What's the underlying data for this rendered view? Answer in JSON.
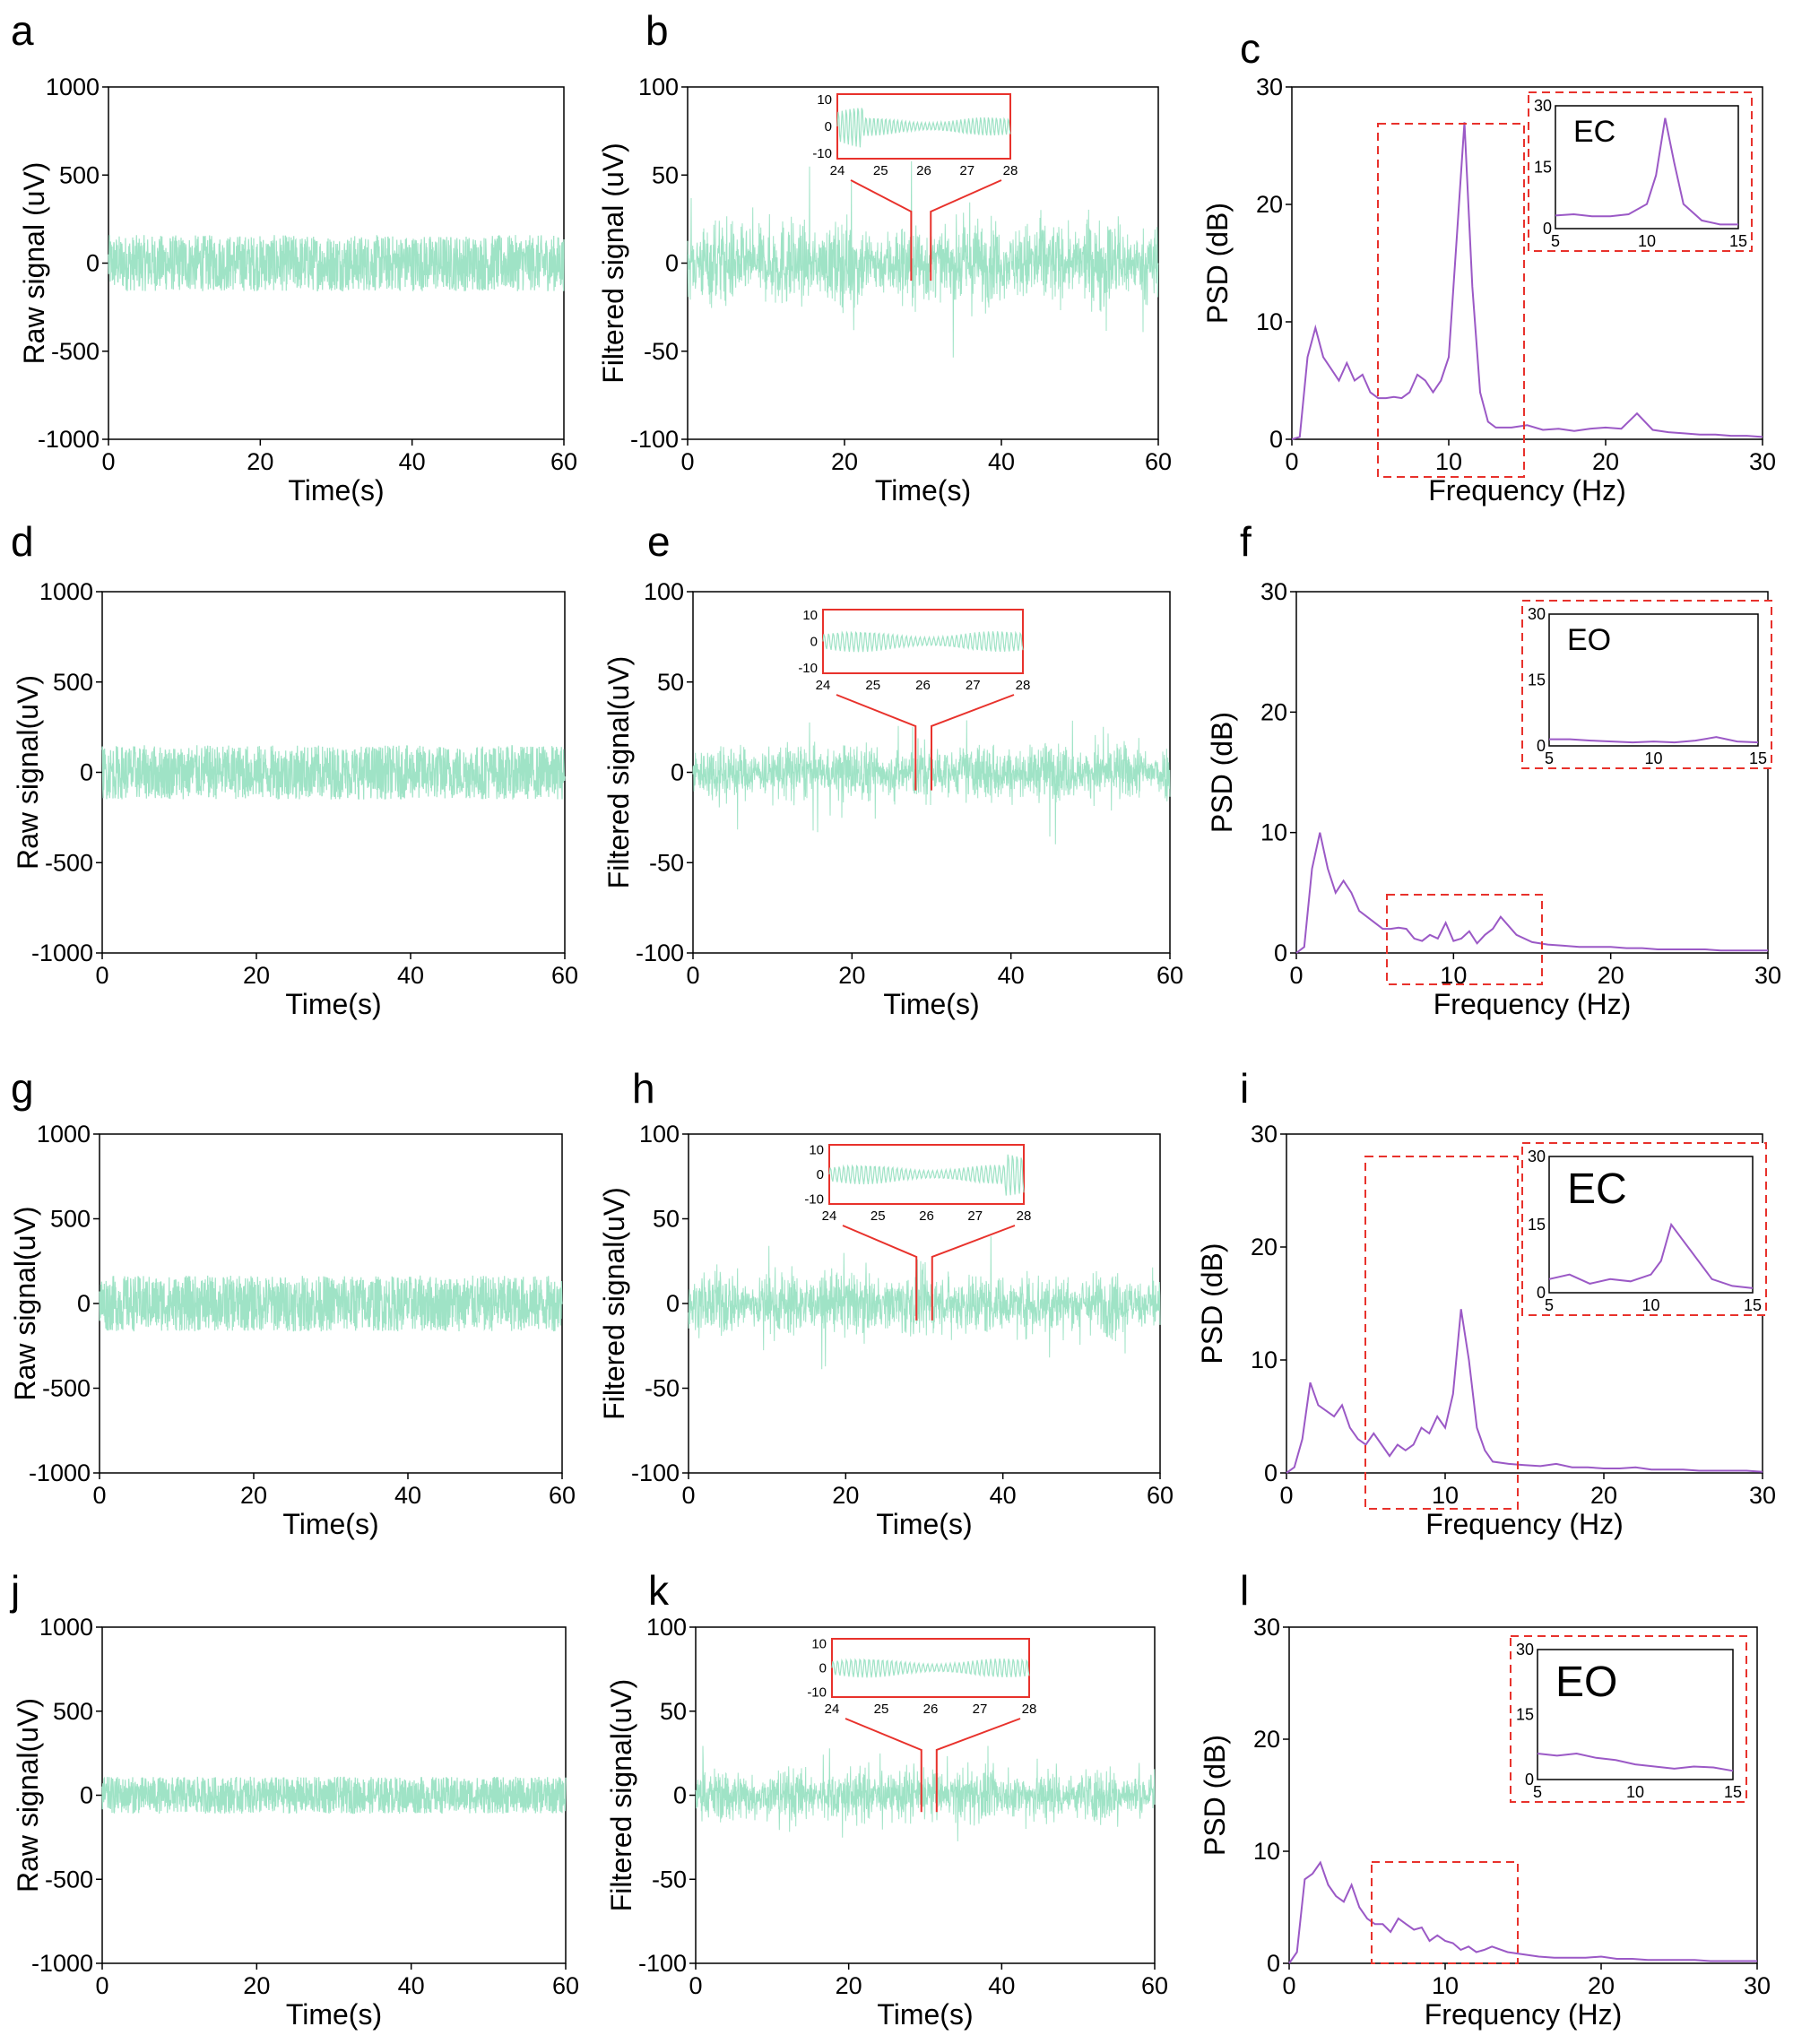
{
  "chart_data": [
    {
      "panel": "a",
      "type": "line",
      "xlabel": "Time(s)",
      "ylabel": "Raw signal (uV)",
      "xlim": [
        0,
        60
      ],
      "ylim": [
        -1000,
        1000
      ],
      "xticks": [
        0,
        20,
        40,
        60
      ],
      "yticks": [
        -1000,
        -500,
        0,
        500,
        1000
      ],
      "series": [
        {
          "name": "raw",
          "color": "#9fe3c6",
          "amplitude": 160
        }
      ]
    },
    {
      "panel": "b",
      "type": "line",
      "xlabel": "Time(s)",
      "ylabel": "Filtered signal (uV)",
      "xlim": [
        0,
        60
      ],
      "ylim": [
        -100,
        100
      ],
      "xticks": [
        0,
        20,
        40,
        60
      ],
      "yticks": [
        -100,
        -50,
        0,
        50,
        100
      ],
      "series": [
        {
          "name": "filtered",
          "color": "#9fe3c6",
          "amplitude": 18
        }
      ],
      "inset": {
        "xlim": [
          24,
          28
        ],
        "ylim": [
          -12,
          12
        ],
        "xticks": [
          24,
          25,
          26,
          27,
          28
        ],
        "yticks": [
          -10,
          0,
          10
        ],
        "color": "#e8322c",
        "zoom_from": [
          28.5,
          31
        ]
      }
    },
    {
      "panel": "c",
      "type": "line",
      "xlabel": "Frequency (Hz)",
      "ylabel": "PSD (dB)",
      "xlim": [
        0,
        30
      ],
      "ylim": [
        0,
        30
      ],
      "xticks": [
        0,
        10,
        20,
        30
      ],
      "yticks": [
        0,
        10,
        20,
        30
      ],
      "series": [
        {
          "name": "PSD",
          "color": "#9b59c6",
          "x": [
            0,
            0.5,
            1,
            1.5,
            2,
            2.5,
            3,
            3.5,
            4,
            4.5,
            5,
            5.5,
            6,
            6.5,
            7,
            7.5,
            8,
            8.5,
            9,
            9.5,
            10,
            10.5,
            11,
            11.5,
            12,
            12.5,
            13,
            14,
            15,
            16,
            17,
            18,
            19,
            20,
            21,
            22,
            23,
            24,
            25,
            26,
            27,
            28,
            29,
            30
          ],
          "y": [
            0,
            0.2,
            7,
            9.5,
            7,
            6,
            5,
            6.5,
            5,
            5.5,
            4,
            3.5,
            3.5,
            3.6,
            3.5,
            4,
            5.5,
            5,
            4,
            5,
            7,
            17,
            27,
            13,
            4,
            1.5,
            1,
            1,
            1.2,
            0.8,
            0.9,
            0.7,
            0.9,
            1,
            0.9,
            2.2,
            0.8,
            0.6,
            0.5,
            0.4,
            0.4,
            0.3,
            0.3,
            0.2
          ]
        }
      ],
      "highlight": {
        "x": [
          6,
          15
        ]
      },
      "inset": {
        "label": "EC",
        "xlim": [
          5,
          15
        ],
        "ylim": [
          0,
          30
        ],
        "xticks": [
          5,
          10,
          15
        ],
        "yticks": [
          0,
          15,
          30
        ],
        "x": [
          5,
          6,
          7,
          8,
          9,
          10,
          10.5,
          11,
          11.5,
          12,
          13,
          14,
          15
        ],
        "y": [
          3.2,
          3.5,
          3,
          3,
          3.5,
          6,
          13,
          27,
          16,
          6,
          2,
          1,
          1
        ]
      }
    },
    {
      "panel": "d",
      "type": "line",
      "xlabel": "Time(s)",
      "ylabel": "Raw signal(uV)",
      "xlim": [
        0,
        60
      ],
      "ylim": [
        -1000,
        1000
      ],
      "xticks": [
        0,
        20,
        40,
        60
      ],
      "yticks": [
        -1000,
        -500,
        0,
        500,
        1000
      ],
      "series": [
        {
          "name": "raw",
          "color": "#9fe3c6",
          "amplitude": 150
        }
      ]
    },
    {
      "panel": "e",
      "type": "line",
      "xlabel": "Time(s)",
      "ylabel": "Filtered signal(uV)",
      "xlim": [
        0,
        60
      ],
      "ylim": [
        -100,
        100
      ],
      "xticks": [
        0,
        20,
        40,
        60
      ],
      "yticks": [
        -100,
        -50,
        0,
        50,
        100
      ],
      "series": [
        {
          "name": "filtered",
          "color": "#9fe3c6",
          "amplitude": 12
        }
      ],
      "inset": {
        "xlim": [
          24,
          28
        ],
        "ylim": [
          -12,
          12
        ],
        "xticks": [
          24,
          25,
          26,
          27,
          28
        ],
        "yticks": [
          -10,
          0,
          10
        ],
        "color": "#e8322c",
        "zoom_from": [
          28,
          30
        ]
      }
    },
    {
      "panel": "f",
      "type": "line",
      "xlabel": "Frequency (Hz)",
      "ylabel": "PSD (dB)",
      "xlim": [
        0,
        30
      ],
      "ylim": [
        0,
        30
      ],
      "xticks": [
        0,
        10,
        20,
        30
      ],
      "yticks": [
        0,
        10,
        20,
        30
      ],
      "series": [
        {
          "name": "PSD",
          "color": "#9b59c6",
          "x": [
            0,
            0.5,
            1,
            1.5,
            2,
            2.5,
            3,
            3.5,
            4,
            4.5,
            5,
            5.5,
            6,
            6.5,
            7,
            7.5,
            8,
            8.5,
            9,
            9.5,
            10,
            10.5,
            11,
            11.5,
            12,
            12.5,
            13,
            14,
            15,
            16,
            17,
            18,
            19,
            20,
            21,
            22,
            23,
            24,
            25,
            26,
            27,
            28,
            29,
            30
          ],
          "y": [
            0,
            0.5,
            7,
            10,
            7,
            5,
            6,
            5,
            3.5,
            3,
            2.5,
            2,
            2,
            2.1,
            2,
            1.2,
            1,
            1.5,
            1.2,
            2.5,
            1,
            1.2,
            1.8,
            0.8,
            1.5,
            2,
            3,
            1.5,
            0.9,
            0.7,
            0.6,
            0.5,
            0.5,
            0.5,
            0.4,
            0.4,
            0.3,
            0.3,
            0.3,
            0.3,
            0.2,
            0.2,
            0.2,
            0.2
          ]
        }
      ],
      "highlight": {
        "x": [
          6,
          16
        ]
      },
      "inset": {
        "label": "EO",
        "xlim": [
          5,
          15
        ],
        "ylim": [
          0,
          30
        ],
        "xticks": [
          5,
          10,
          15
        ],
        "yticks": [
          0,
          15,
          30
        ],
        "x": [
          5,
          6,
          7,
          8,
          9,
          10,
          11,
          12,
          13,
          14,
          15
        ],
        "y": [
          1.5,
          1.5,
          1.2,
          1,
          0.8,
          1,
          0.8,
          1.2,
          2,
          1,
          0.8
        ]
      }
    },
    {
      "panel": "g",
      "type": "line",
      "xlabel": "Time(s)",
      "ylabel": "Raw signal(uV)",
      "xlim": [
        0,
        60
      ],
      "ylim": [
        -1000,
        1000
      ],
      "xticks": [
        0,
        20,
        40,
        60
      ],
      "yticks": [
        -1000,
        -500,
        0,
        500,
        1000
      ],
      "series": [
        {
          "name": "raw",
          "color": "#9fe3c6",
          "amplitude": 165
        }
      ]
    },
    {
      "panel": "h",
      "type": "line",
      "xlabel": "Time(s)",
      "ylabel": "Filtered signal(uV)",
      "xlim": [
        0,
        60
      ],
      "ylim": [
        -100,
        100
      ],
      "xticks": [
        0,
        20,
        40,
        60
      ],
      "yticks": [
        -100,
        -50,
        0,
        50,
        100
      ],
      "series": [
        {
          "name": "filtered",
          "color": "#9fe3c6",
          "amplitude": 14
        }
      ],
      "inset": {
        "xlim": [
          24,
          28
        ],
        "ylim": [
          -12,
          12
        ],
        "xticks": [
          24,
          25,
          26,
          27,
          28
        ],
        "yticks": [
          -10,
          0,
          10
        ],
        "color": "#e8322c",
        "zoom_from": [
          29,
          31
        ]
      }
    },
    {
      "panel": "i",
      "type": "line",
      "xlabel": "Frequency (Hz)",
      "ylabel": "PSD (dB)",
      "xlim": [
        0,
        30
      ],
      "ylim": [
        0,
        30
      ],
      "xticks": [
        0,
        10,
        20,
        30
      ],
      "yticks": [
        0,
        10,
        20,
        30
      ],
      "series": [
        {
          "name": "PSD",
          "color": "#9b59c6",
          "x": [
            0,
            0.5,
            1,
            1.5,
            2,
            2.5,
            3,
            3.5,
            4,
            4.5,
            5,
            5.5,
            6,
            6.5,
            7,
            7.5,
            8,
            8.5,
            9,
            9.5,
            10,
            10.5,
            11,
            11.5,
            12,
            12.5,
            13,
            14,
            15,
            16,
            17,
            18,
            19,
            20,
            21,
            22,
            23,
            24,
            25,
            26,
            27,
            28,
            29,
            30
          ],
          "y": [
            0,
            0.5,
            3,
            8,
            6,
            5.5,
            5,
            6,
            4,
            3,
            2.5,
            3.5,
            2.5,
            1.5,
            2.5,
            2,
            2.5,
            4,
            3.5,
            5,
            4,
            7,
            14.5,
            10,
            4,
            2,
            1,
            0.8,
            0.7,
            0.6,
            0.8,
            0.5,
            0.5,
            0.4,
            0.4,
            0.5,
            0.3,
            0.3,
            0.3,
            0.2,
            0.2,
            0.2,
            0.2,
            0.1
          ]
        }
      ],
      "highlight": {
        "x": [
          5.5,
          15
        ]
      },
      "inset": {
        "label": "EC",
        "xlim": [
          5,
          15
        ],
        "ylim": [
          0,
          30
        ],
        "xticks": [
          5,
          10,
          15
        ],
        "yticks": [
          0,
          15,
          30
        ],
        "x": [
          5,
          6,
          7,
          8,
          9,
          10,
          10.5,
          11,
          11.5,
          12,
          13,
          14,
          15
        ],
        "y": [
          3,
          4,
          2,
          3,
          2.5,
          4,
          7,
          15,
          12,
          9,
          3,
          1.5,
          1
        ]
      }
    },
    {
      "panel": "j",
      "type": "line",
      "xlabel": "Time(s)",
      "ylabel": "Raw signal(uV)",
      "xlim": [
        0,
        60
      ],
      "ylim": [
        -1000,
        1000
      ],
      "xticks": [
        0,
        20,
        40,
        60
      ],
      "yticks": [
        -1000,
        -500,
        0,
        500,
        1000
      ],
      "series": [
        {
          "name": "raw",
          "color": "#9fe3c6",
          "amplitude": 110
        }
      ]
    },
    {
      "panel": "k",
      "type": "line",
      "xlabel": "Time(s)",
      "ylabel": "Filtered signal(uV)",
      "xlim": [
        0,
        60
      ],
      "ylim": [
        -100,
        100
      ],
      "xticks": [
        0,
        20,
        40,
        60
      ],
      "yticks": [
        -100,
        -50,
        0,
        50,
        100
      ],
      "series": [
        {
          "name": "filtered",
          "color": "#9fe3c6",
          "amplitude": 12
        }
      ],
      "inset": {
        "xlim": [
          24,
          28
        ],
        "ylim": [
          -12,
          12
        ],
        "xticks": [
          24,
          25,
          26,
          27,
          28
        ],
        "yticks": [
          -10,
          0,
          10
        ],
        "color": "#e8322c",
        "zoom_from": [
          29.5,
          31.5
        ]
      }
    },
    {
      "panel": "l",
      "type": "line",
      "xlabel": "Frequency (Hz)",
      "ylabel": "PSD (dB)",
      "xlim": [
        0,
        30
      ],
      "ylim": [
        0,
        30
      ],
      "xticks": [
        0,
        10,
        20,
        30
      ],
      "yticks": [
        0,
        10,
        20,
        30
      ],
      "series": [
        {
          "name": "PSD",
          "color": "#9b59c6",
          "x": [
            0,
            0.5,
            1,
            1.5,
            2,
            2.5,
            3,
            3.5,
            4,
            4.5,
            5,
            5.5,
            6,
            6.5,
            7,
            7.5,
            8,
            8.5,
            9,
            9.5,
            10,
            10.5,
            11,
            11.5,
            12,
            12.5,
            13,
            14,
            15,
            16,
            17,
            18,
            19,
            20,
            21,
            22,
            23,
            24,
            25,
            26,
            27,
            28,
            29,
            30
          ],
          "y": [
            0,
            1,
            7.5,
            8,
            9,
            7,
            6,
            5.5,
            7,
            5,
            4,
            3.5,
            3.5,
            2.8,
            4,
            3.5,
            3,
            3.2,
            2,
            2.5,
            2,
            1.8,
            1.2,
            1.5,
            1,
            1.2,
            1.5,
            1,
            0.8,
            0.6,
            0.5,
            0.5,
            0.5,
            0.6,
            0.4,
            0.4,
            0.3,
            0.3,
            0.3,
            0.3,
            0.2,
            0.2,
            0.2,
            0.2
          ]
        }
      ],
      "highlight": {
        "x": [
          5.5,
          15
        ]
      },
      "inset": {
        "label": "EO",
        "xlim": [
          5,
          15
        ],
        "ylim": [
          0,
          30
        ],
        "xticks": [
          5,
          10,
          15
        ],
        "yticks": [
          0,
          15,
          30
        ],
        "x": [
          5,
          6,
          7,
          8,
          9,
          10,
          11,
          12,
          13,
          14,
          15
        ],
        "y": [
          6,
          5.5,
          6,
          5,
          4.5,
          3.5,
          3,
          2.5,
          3,
          2.8,
          2
        ]
      }
    }
  ]
}
